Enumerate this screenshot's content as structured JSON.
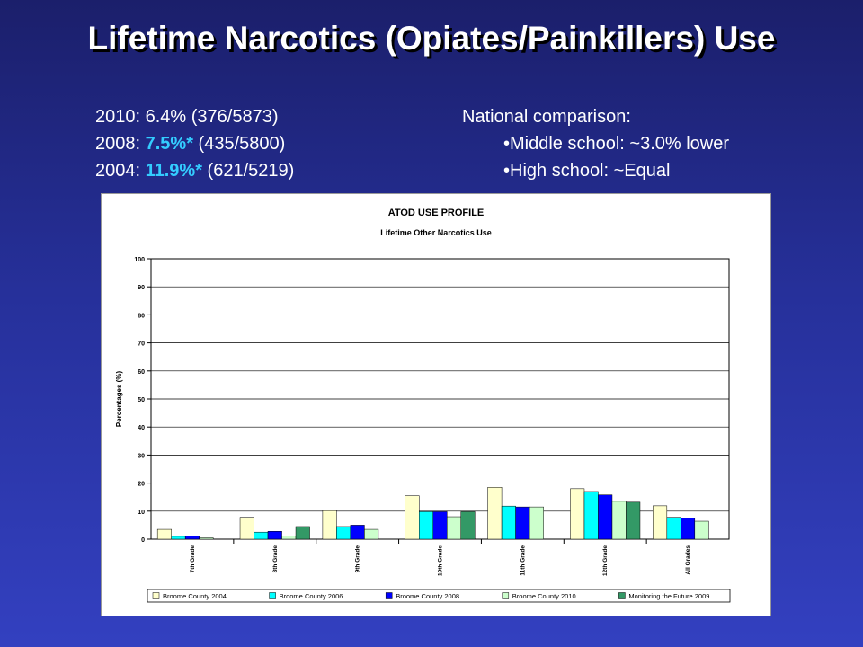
{
  "slide": {
    "title": "Lifetime Narcotics (Opiates/Painkillers) Use",
    "stats": [
      {
        "year": "2010: ",
        "value": "6.4%",
        "detail": " (376/5873)",
        "highlight": false
      },
      {
        "year": "2008: ",
        "value": "7.5%*",
        "detail": " (435/5800)",
        "highlight": true
      },
      {
        "year": "2004: ",
        "value": "11.9%*",
        "detail": " (621/5219)",
        "highlight": true
      }
    ],
    "national": {
      "title": "National comparison:",
      "items": [
        "•Middle school: ~3.0% lower",
        "•High school: ~Equal"
      ]
    },
    "highlight_color": "#33ccff"
  },
  "chart_data": {
    "type": "bar",
    "title": "ATOD USE PROFILE",
    "subtitle": "Lifetime Other Narcotics Use",
    "ylabel": "Percentages (%)",
    "xlabel": "",
    "ylim": [
      0,
      100
    ],
    "yticks": [
      0,
      10,
      20,
      30,
      40,
      50,
      60,
      70,
      80,
      90,
      100
    ],
    "grid": true,
    "legend_position": "bottom",
    "categories": [
      "7th Grade",
      "8th Grade",
      "9th Grade",
      "10th Grade",
      "11th Grade",
      "12th Grade",
      "All Grades"
    ],
    "series": [
      {
        "name": "Broome County 2004",
        "color": "#ffffcc",
        "values": [
          3.5,
          7.8,
          10.2,
          15.5,
          18.5,
          18.0,
          11.9
        ]
      },
      {
        "name": "Broome County 2006",
        "color": "#00ffff",
        "values": [
          1.0,
          2.5,
          4.5,
          9.8,
          11.8,
          17.0,
          7.8
        ]
      },
      {
        "name": "Broome County 2008",
        "color": "#0000ff",
        "values": [
          1.2,
          2.8,
          5.0,
          9.8,
          11.5,
          15.8,
          7.5
        ]
      },
      {
        "name": "Broome County 2010",
        "color": "#ccffcc",
        "values": [
          0.5,
          1.2,
          3.5,
          8.0,
          11.5,
          13.5,
          6.4
        ]
      },
      {
        "name": "Monitoring the Future 2009",
        "color": "#339966",
        "values": [
          null,
          4.5,
          null,
          9.8,
          null,
          13.2,
          null
        ]
      }
    ]
  }
}
